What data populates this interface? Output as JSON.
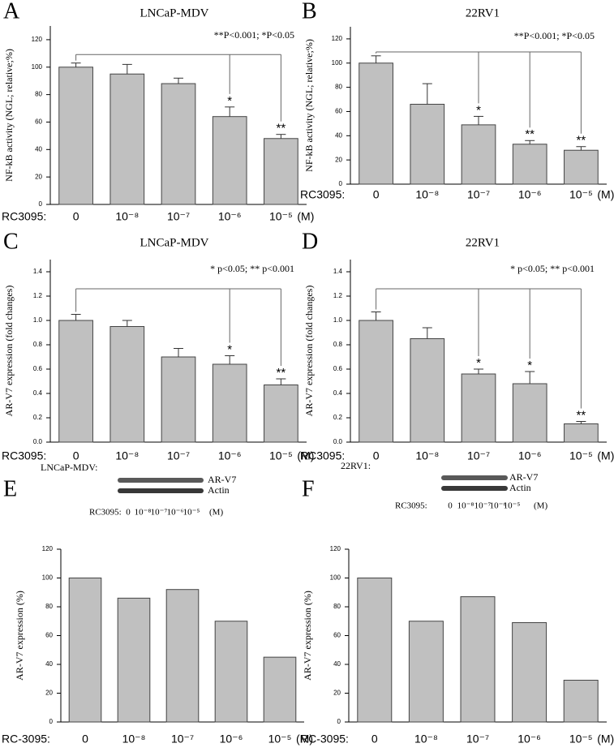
{
  "chart_data": [
    {
      "type": "bar",
      "panel": "A",
      "title": "LNCaP-MDV",
      "ylabel": "NF-kB activity (NGL; relative;%)",
      "xlabel": "RC3095:",
      "categories": [
        "0",
        "10⁻⁸",
        "10⁻⁷",
        "10⁻⁶",
        "10⁻⁵"
      ],
      "unit": "(M)",
      "values": [
        100,
        95,
        88,
        64,
        48
      ],
      "errors": [
        3,
        7,
        4,
        7,
        3
      ],
      "stars": [
        null,
        null,
        null,
        "*",
        "**"
      ],
      "note": "**P<0.001; *P<0.05",
      "color": "#c0c0c0",
      "ylim": [
        0,
        130
      ],
      "yticks": [
        0,
        20,
        40,
        60,
        80,
        100,
        120
      ]
    },
    {
      "type": "bar",
      "panel": "B",
      "title": "22RV1",
      "ylabel": "NF-kB activity (NGL; relative;%)",
      "xlabel": "RC3095:",
      "categories": [
        "0",
        "10⁻⁸",
        "10⁻⁷",
        "10⁻⁶",
        "10⁻⁵"
      ],
      "unit": "(M)",
      "values": [
        100,
        66,
        49,
        33,
        28
      ],
      "errors": [
        6,
        17,
        7,
        3,
        3
      ],
      "stars": [
        null,
        null,
        "*",
        "**",
        "**"
      ],
      "note": "**P<0.001; *P<0.05",
      "color": "#c0c0c0",
      "ylim": [
        0,
        130
      ],
      "yticks": [
        0,
        20,
        40,
        60,
        80,
        100,
        120
      ]
    },
    {
      "type": "bar",
      "panel": "C",
      "title": "LNCaP-MDV",
      "ylabel": "AR-V7 expression (fold changes)",
      "xlabel": "RC3095:",
      "categories": [
        "0",
        "10⁻⁸",
        "10⁻⁷",
        "10⁻⁶",
        "10⁻⁵"
      ],
      "unit": "(M)",
      "values": [
        1.0,
        0.95,
        0.7,
        0.64,
        0.47
      ],
      "errors": [
        0.05,
        0.05,
        0.07,
        0.07,
        0.05
      ],
      "stars": [
        null,
        null,
        null,
        "*",
        "**"
      ],
      "note": "* p<0.05; ** p<0.001",
      "color": "#c0c0c0",
      "ylim": [
        0,
        1.5
      ],
      "yticks": [
        {
          "value": 0,
          "label": "0.0"
        },
        0.2,
        0.4,
        0.6,
        0.8,
        {
          "value": 1,
          "label": "1.0"
        },
        1.2,
        1.4
      ]
    },
    {
      "type": "bar",
      "panel": "D",
      "title": "22RV1",
      "ylabel": "AR-V7 expression (fold changes)",
      "xlabel": "RC3095:",
      "categories": [
        "0",
        "10⁻⁸",
        "10⁻⁷",
        "10⁻⁶",
        "10⁻⁵"
      ],
      "unit": "(M)",
      "values": [
        1.0,
        0.85,
        0.56,
        0.48,
        0.15
      ],
      "errors": [
        0.07,
        0.09,
        0.04,
        0.1,
        0.02
      ],
      "stars": [
        null,
        null,
        "*",
        "*",
        "**"
      ],
      "note": "* p<0.05; ** p<0.001",
      "color": "#c0c0c0",
      "ylim": [
        0,
        1.5
      ],
      "yticks": [
        {
          "value": 0,
          "label": "0.0"
        },
        0.2,
        0.4,
        0.6,
        0.8,
        {
          "value": 1,
          "label": "1.0"
        },
        1.2,
        1.4
      ]
    },
    {
      "type": "bar",
      "panel": "E",
      "ylabel": "AR-V7 expression (%)",
      "xlabel": "RC-3095:",
      "categories": [
        "0",
        "10⁻⁸",
        "10⁻⁷",
        "10⁻⁶",
        "10⁻⁵"
      ],
      "unit": "(M)",
      "values": [
        100,
        86,
        92,
        70,
        45
      ],
      "color": "#c0c0c0",
      "ylim": [
        0,
        120
      ],
      "yticks": [
        0,
        20,
        40,
        60,
        80,
        100,
        120
      ],
      "blot": {
        "label": "LNCaP-MDV:",
        "bands": [
          "AR-V7",
          "Actin"
        ],
        "xlabel": "RC3095:",
        "lanes": [
          "0",
          "10⁻⁸",
          "10⁻⁷",
          "10⁻⁶",
          "10⁻⁵"
        ],
        "unit": "(M)"
      }
    },
    {
      "type": "bar",
      "panel": "F",
      "ylabel": "AR-V7 expression (%)",
      "xlabel": "RC-3095:",
      "categories": [
        "0",
        "10⁻⁸",
        "10⁻⁷",
        "10⁻⁶",
        "10⁻⁵"
      ],
      "unit": "(M)",
      "values": [
        100,
        70,
        87,
        69,
        29
      ],
      "color": "#c0c0c0",
      "ylim": [
        0,
        120
      ],
      "yticks": [
        0,
        20,
        40,
        60,
        80,
        100,
        120
      ],
      "blot": {
        "label": "22RV1:",
        "bands": [
          "AR-V7",
          "Actin"
        ],
        "xlabel": "RC3095:",
        "lanes": [
          "0",
          "10⁻⁸",
          "10⁻⁷",
          "10⁻⁶",
          "10⁻⁵"
        ],
        "unit": "(M)"
      }
    }
  ]
}
